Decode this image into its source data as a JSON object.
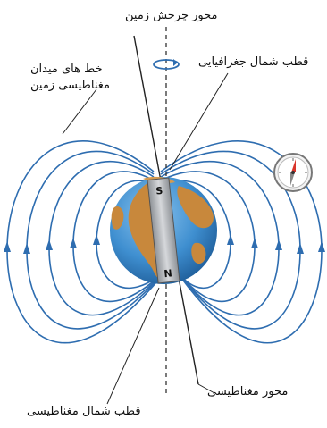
{
  "labels": {
    "rotation_axis": "محور چرخش زمین",
    "field_lines_line1": "خط های میدان",
    "field_lines_line2": "مغناطیسی زمین",
    "geographic_north": "قطب شمال جغرافیایی",
    "magnetic_axis": "محور مغناطیسی",
    "magnetic_north": "قطب شمال مغناطیسی"
  },
  "magnet_poles": {
    "top": "S",
    "bottom": "N"
  },
  "colors": {
    "field_line": "#2e6db0",
    "ocean": "#3f8fd0",
    "land": "#c8883c",
    "magnet": "#b9bcc0",
    "compass_needle_red": "#d9352b"
  }
}
